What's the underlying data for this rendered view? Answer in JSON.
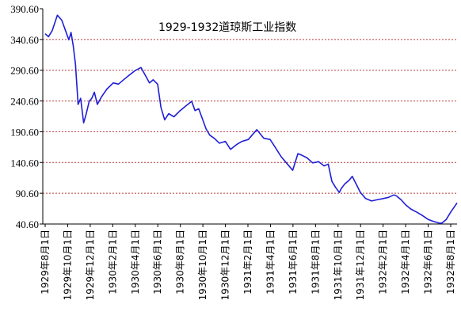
{
  "chart_data": {
    "type": "line",
    "title": "1929-1932道琼斯工业指数",
    "xlabel": "",
    "ylabel": "",
    "ylim": [
      40.6,
      390.6
    ],
    "grid": true,
    "colors": {
      "line": "#1f1fd6",
      "grid": "#b83a3a",
      "axis": "#000000",
      "background": "#ffffff"
    },
    "y_ticks": [
      "390.60",
      "340.60",
      "290.60",
      "240.60",
      "190.60",
      "140.60",
      "90.60",
      "40.60"
    ],
    "y_tick_values": [
      390.6,
      340.6,
      290.6,
      240.6,
      190.6,
      140.6,
      90.6,
      40.6
    ],
    "x_ticks": [
      "1929年8月1日",
      "1929年10月1日",
      "1929年12月1日",
      "1930年2月1日",
      "1930年4月1日",
      "1930年6月1日",
      "1930年8月1日",
      "1930年10月1日",
      "1930年12月1日",
      "1931年2月1日",
      "1931年4月1日",
      "1931年6月1日",
      "1931年8月1日",
      "1931年10月1日",
      "1931年12月1日",
      "1932年2月1日",
      "1932年4月1日",
      "1932年6月1日",
      "1932年8月1日"
    ],
    "series": [
      {
        "x": [
          "1929-08-01",
          "1929-08-10",
          "1929-08-20",
          "1929-09-03",
          "1929-09-15",
          "1929-09-25",
          "1929-10-04",
          "1929-10-10",
          "1929-10-16",
          "1929-10-22",
          "1929-10-29",
          "1929-11-05",
          "1929-11-13",
          "1929-11-20",
          "1929-11-28",
          "1929-12-05",
          "1929-12-12",
          "1929-12-20",
          "1930-01-01",
          "1930-01-15",
          "1930-02-01",
          "1930-02-15",
          "1930-03-01",
          "1930-03-15",
          "1930-04-01",
          "1930-04-17",
          "1930-05-01",
          "1930-05-10",
          "1930-05-20",
          "1930-06-01",
          "1930-06-10",
          "1930-06-20",
          "1930-07-01",
          "1930-07-15",
          "1930-08-01",
          "1930-08-15",
          "1930-09-01",
          "1930-09-10",
          "1930-09-20",
          "1930-10-01",
          "1930-10-10",
          "1930-10-20",
          "1930-11-01",
          "1930-11-15",
          "1930-12-01",
          "1930-12-15",
          "1931-01-01",
          "1931-01-15",
          "1931-02-01",
          "1931-02-24",
          "1931-03-15",
          "1931-04-01",
          "1931-04-15",
          "1931-05-01",
          "1931-05-15",
          "1931-06-01",
          "1931-06-15",
          "1931-06-27",
          "1931-07-10",
          "1931-07-25",
          "1931-08-10",
          "1931-08-25",
          "1931-09-05",
          "1931-09-15",
          "1931-09-25",
          "1931-10-05",
          "1931-10-10",
          "1931-10-20",
          "1931-11-01",
          "1931-11-09",
          "1931-11-20",
          "1931-12-01",
          "1931-12-15",
          "1931-12-31",
          "1932-01-15",
          "1932-02-01",
          "1932-02-15",
          "1932-03-01",
          "1932-03-08",
          "1932-03-20",
          "1932-04-01",
          "1932-04-15",
          "1932-05-01",
          "1932-05-15",
          "1932-06-01",
          "1932-06-15",
          "1932-07-01",
          "1932-07-08",
          "1932-07-20",
          "1932-08-01",
          "1932-08-15",
          "1932-08-31"
        ],
        "values": [
          350,
          345,
          355,
          380,
          372,
          355,
          340,
          352,
          330,
          300,
          235,
          245,
          205,
          220,
          240,
          245,
          255,
          235,
          248,
          260,
          270,
          268,
          275,
          282,
          290,
          295,
          280,
          270,
          275,
          268,
          230,
          210,
          220,
          215,
          225,
          232,
          240,
          225,
          228,
          210,
          195,
          185,
          180,
          172,
          175,
          162,
          170,
          175,
          178,
          194,
          180,
          178,
          165,
          150,
          140,
          128,
          155,
          152,
          148,
          140,
          142,
          135,
          138,
          110,
          100,
          92,
          98,
          106,
          112,
          118,
          105,
          92,
          82,
          78,
          80,
          82,
          84,
          88,
          86,
          80,
          72,
          65,
          60,
          55,
          48,
          45,
          42,
          42,
          48,
          60,
          72,
          75
        ]
      }
    ]
  }
}
